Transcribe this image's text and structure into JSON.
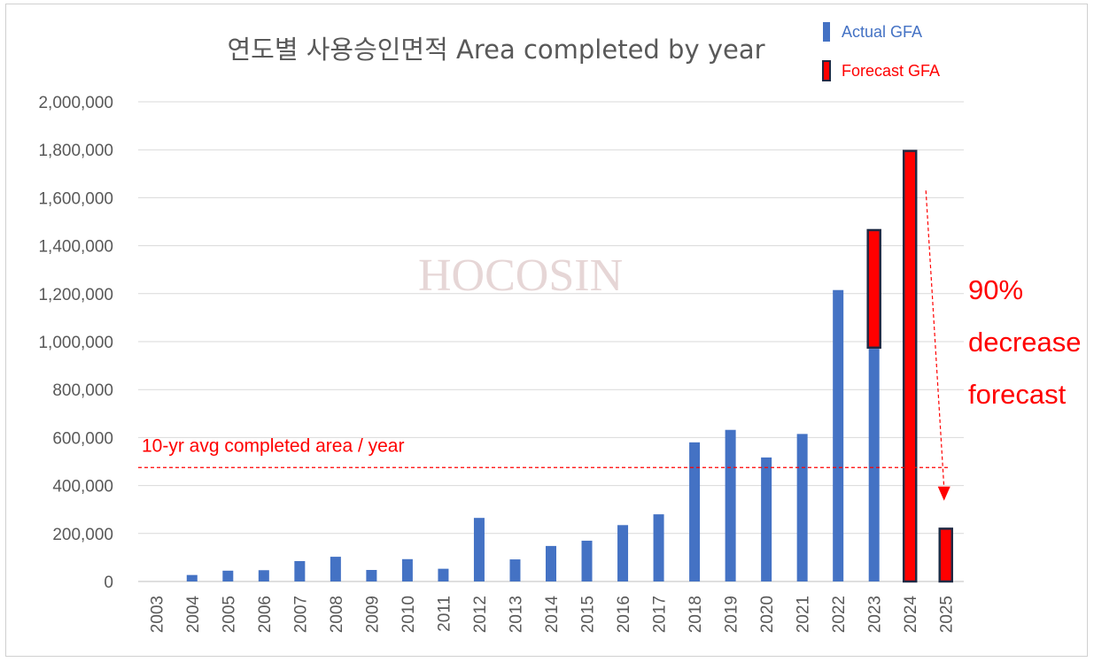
{
  "chart_data": {
    "type": "bar",
    "title": "연도별 사용승인면적 Area completed by year",
    "xlabel": "",
    "ylabel": "",
    "ylim": [
      0,
      2000000
    ],
    "yticks": [
      0,
      200000,
      400000,
      600000,
      800000,
      1000000,
      1200000,
      1400000,
      1600000,
      1800000,
      2000000
    ],
    "ytick_labels": [
      "0",
      "200,000",
      "400,000",
      "600,000",
      "800,000",
      "1,000,000",
      "1,200,000",
      "1,400,000",
      "1,600,000",
      "1,800,000",
      "2,000,000"
    ],
    "grid": true,
    "legend_position": "top-right",
    "categories": [
      "2003",
      "2004",
      "2005",
      "2006",
      "2007",
      "2008",
      "2009",
      "2010",
      "2011",
      "2012",
      "2013",
      "2014",
      "2015",
      "2016",
      "2017",
      "2018",
      "2019",
      "2020",
      "2021",
      "2022",
      "2023",
      "2024",
      "2025"
    ],
    "series": [
      {
        "name": "Actual GFA",
        "color": "#4472c4",
        "values": [
          0,
          27000,
          45000,
          47000,
          85000,
          103000,
          48000,
          93000,
          53000,
          265000,
          92000,
          148000,
          170000,
          235000,
          280000,
          580000,
          632000,
          517000,
          615000,
          1215000,
          970000,
          null,
          null
        ]
      },
      {
        "name": "Forecast GFA",
        "color": "#ff0000",
        "border_color": "#1f2a44",
        "ranges": [
          {
            "category": "2023",
            "from": 975000,
            "to": 1465000
          },
          {
            "category": "2024",
            "from": 0,
            "to": 1795000
          },
          {
            "category": "2025",
            "from": 0,
            "to": 220000
          }
        ]
      }
    ],
    "reference_line": {
      "value": 475000,
      "label": "10-yr avg completed area / year",
      "color": "#ff0000",
      "style": "dashed"
    },
    "annotations": {
      "decrease_lines": [
        "90%",
        "decrease",
        "forecast"
      ],
      "arrow": {
        "from_category": "2024",
        "from_value": 1630000,
        "to_category": "2025",
        "to_value": 300000
      }
    },
    "watermark": "HOCOSIN"
  }
}
